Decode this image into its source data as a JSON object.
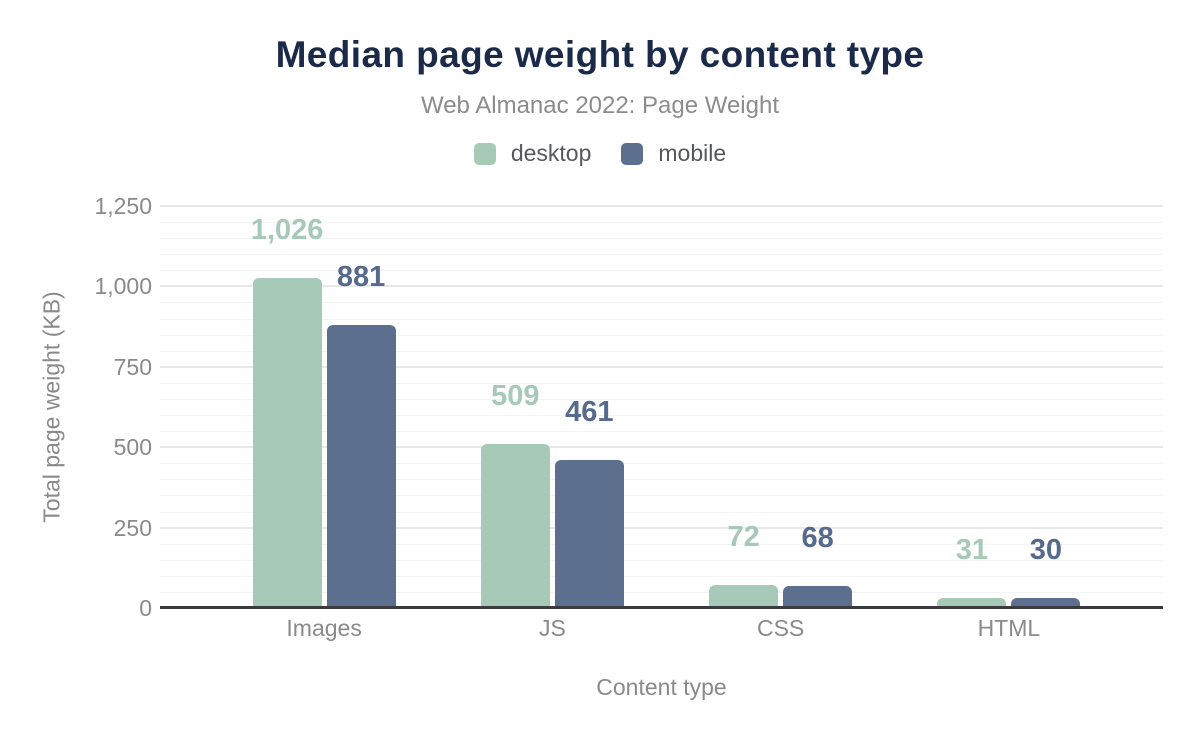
{
  "header": {
    "title": "Median page weight by content type",
    "subtitle": "Web Almanac 2022: Page Weight"
  },
  "colors": {
    "title": "#1b2a49",
    "muted_text": "#8a8a8a",
    "legend_text": "#57585b",
    "axis_line": "#3a3b3f",
    "desktop": "#a7cab8",
    "mobile": "#5d6f8e",
    "desktop_label": "#a7cab8",
    "mobile_label": "#566a8d"
  },
  "chart_data": {
    "type": "bar",
    "title": "Median page weight by content type",
    "subtitle": "Web Almanac 2022: Page Weight",
    "categories": [
      "Images",
      "JS",
      "CSS",
      "HTML"
    ],
    "series": [
      {
        "name": "desktop",
        "color": "#a7cab8",
        "label_color": "#a7cab8",
        "values": [
          1026,
          509,
          72,
          31
        ]
      },
      {
        "name": "mobile",
        "color": "#5d6f8e",
        "label_color": "#566a8d",
        "values": [
          881,
          461,
          68,
          30
        ]
      }
    ],
    "xlabel": "Content type",
    "ylabel": "Total page weight (KB)",
    "ylim": [
      0,
      1250
    ],
    "ytick_step": 250,
    "minor_ytick_step": 50,
    "ytick_labels": [
      "0",
      "250",
      "500",
      "750",
      "1,000",
      "1,250"
    ],
    "value_labels": {
      "desktop": [
        "1,026",
        "509",
        "72",
        "31"
      ],
      "mobile": [
        "881",
        "461",
        "68",
        "30"
      ]
    },
    "grid": true,
    "legend_position": "top",
    "value_labels_shown": true
  }
}
